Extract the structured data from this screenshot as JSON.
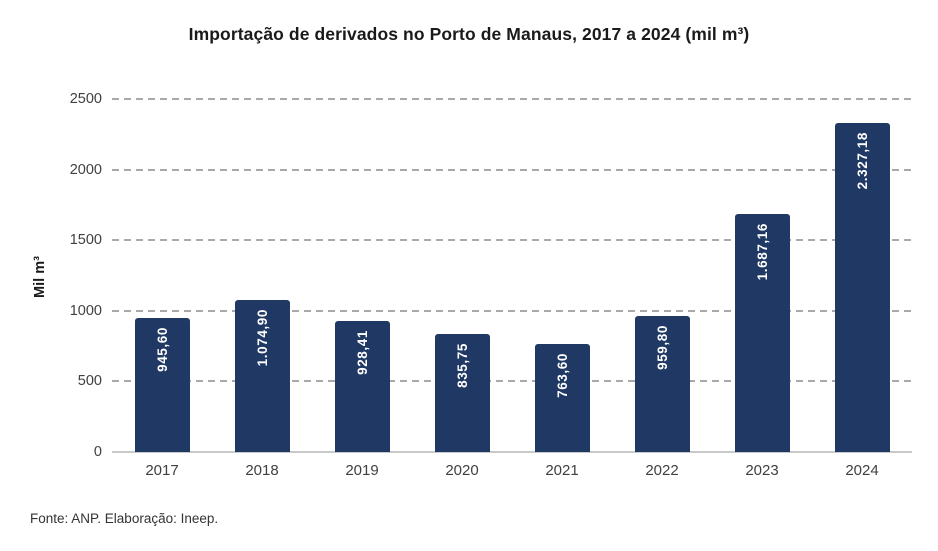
{
  "chart_data": {
    "type": "bar",
    "title": "Importação de derivados no Porto de Manaus, 2017 a 2024 (mil m³)",
    "xlabel": "",
    "ylabel": "Mil m³",
    "categories": [
      "2017",
      "2018",
      "2019",
      "2020",
      "2021",
      "2022",
      "2023",
      "2024"
    ],
    "values": [
      945.6,
      1074.9,
      928.41,
      835.75,
      763.6,
      959.8,
      1687.16,
      2327.18
    ],
    "value_labels": [
      "945,60",
      "1.074,90",
      "928,41",
      "835,75",
      "763,60",
      "959,80",
      "1.687,16",
      "2.327,18"
    ],
    "ylim": [
      0,
      2500
    ],
    "yticks": [
      0,
      500,
      1000,
      1500,
      2000,
      2500
    ],
    "grid": "horizontal-dashed",
    "legend": "none",
    "value_label_orientation": "vertical-inside-top",
    "colors": {
      "bar": "#1F3864",
      "value_label": "#FFFFFF",
      "gridline": "#A9A9A9",
      "axis_line": "#C9C9C9",
      "tick_text": "#404040",
      "title_text": "#1A1A1A"
    }
  },
  "footer": {
    "source": "Fonte: ANP. Elaboração: Ineep."
  }
}
